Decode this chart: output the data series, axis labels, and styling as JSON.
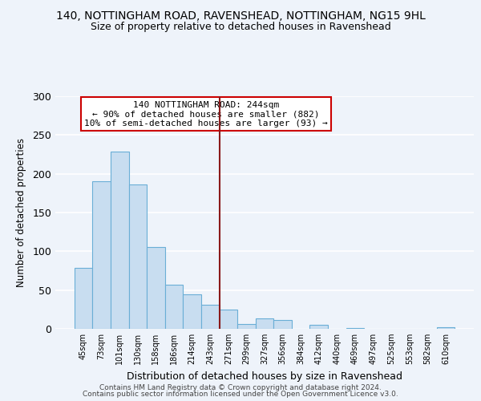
{
  "title": "140, NOTTINGHAM ROAD, RAVENSHEAD, NOTTINGHAM, NG15 9HL",
  "subtitle": "Size of property relative to detached houses in Ravenshead",
  "xlabel": "Distribution of detached houses by size in Ravenshead",
  "ylabel": "Number of detached properties",
  "categories": [
    "45sqm",
    "73sqm",
    "101sqm",
    "130sqm",
    "158sqm",
    "186sqm",
    "214sqm",
    "243sqm",
    "271sqm",
    "299sqm",
    "327sqm",
    "356sqm",
    "384sqm",
    "412sqm",
    "440sqm",
    "469sqm",
    "497sqm",
    "525sqm",
    "553sqm",
    "582sqm",
    "610sqm"
  ],
  "values": [
    79,
    190,
    229,
    186,
    106,
    57,
    44,
    31,
    25,
    6,
    13,
    11,
    0,
    5,
    0,
    1,
    0,
    0,
    0,
    0,
    2
  ],
  "bar_color": "#c8ddf0",
  "bar_edge_color": "#6aaed6",
  "vline_color": "#8b1a1a",
  "annotation_line1": "140 NOTTINGHAM ROAD: 244sqm",
  "annotation_line2": "← 90% of detached houses are smaller (882)",
  "annotation_line3": "10% of semi-detached houses are larger (93) →",
  "annotation_box_color": "#ffffff",
  "annotation_box_edgecolor": "#cc0000",
  "ylim": [
    0,
    300
  ],
  "yticks": [
    0,
    50,
    100,
    150,
    200,
    250,
    300
  ],
  "footer_line1": "Contains HM Land Registry data © Crown copyright and database right 2024.",
  "footer_line2": "Contains public sector information licensed under the Open Government Licence v3.0.",
  "background_color": "#eef3fa"
}
